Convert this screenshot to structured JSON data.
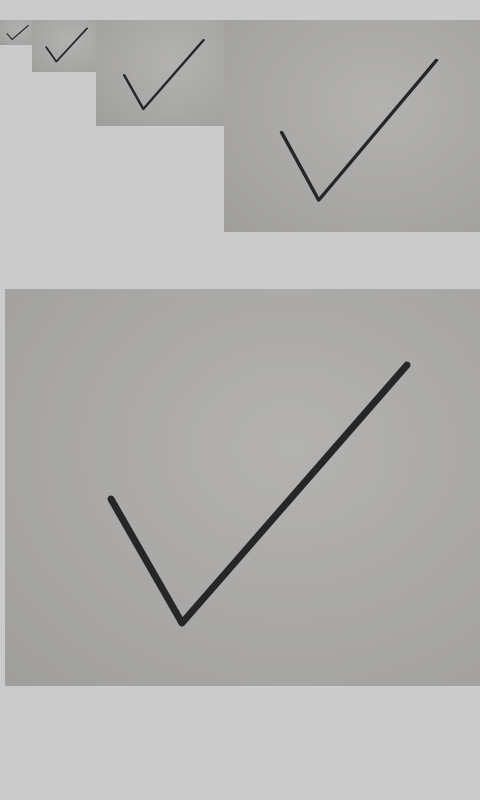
{
  "thumbnails": [
    {
      "icon": "checkmark-icon"
    },
    {
      "icon": "checkmark-icon"
    },
    {
      "icon": "checkmark-icon"
    },
    {
      "icon": "checkmark-icon"
    }
  ],
  "preview": {
    "icon": "checkmark-icon"
  },
  "colors": {
    "background": "#cbcbcb",
    "paper": "#aaa9a7",
    "ink": "#262626"
  }
}
